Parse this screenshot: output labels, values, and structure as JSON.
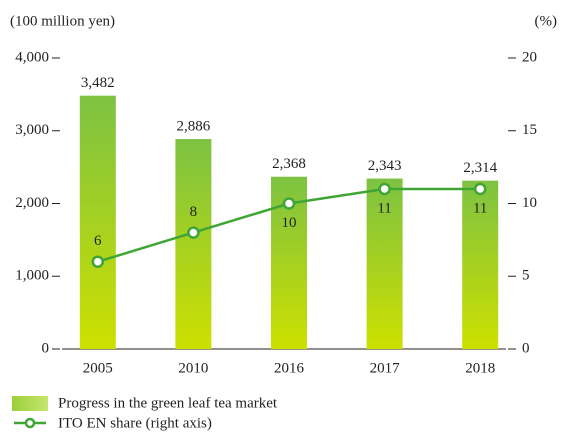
{
  "chart_data": {
    "type": "bar",
    "y_label": "(100 million yen)",
    "y2_label": "(%)",
    "categories": [
      "2005",
      "2010",
      "2016",
      "2017",
      "2018"
    ],
    "series": [
      {
        "name": "Progress in the green leaf tea market",
        "type": "bar",
        "color": "#7dc242",
        "values": [
          3482,
          2886,
          2368,
          2343,
          2314
        ],
        "value_labels": [
          "3,482",
          "2,886",
          "2,368",
          "2,343",
          "2,314"
        ]
      },
      {
        "name": "ITO EN share (right axis)",
        "type": "line",
        "color": "#3fa535",
        "axis": "y2",
        "values": [
          6,
          8,
          10,
          11,
          11
        ]
      }
    ],
    "ylim": [
      0,
      4000
    ],
    "yticks": [
      0,
      {
        "value": 1000,
        "label": "1,000"
      },
      {
        "value": 2000,
        "label": "2,000"
      },
      {
        "value": 3000,
        "label": "3,000"
      },
      {
        "value": 4000,
        "label": "4,000"
      }
    ],
    "y2lim": [
      0,
      20
    ],
    "y2ticks": [
      0,
      5,
      10,
      15,
      20
    ]
  }
}
